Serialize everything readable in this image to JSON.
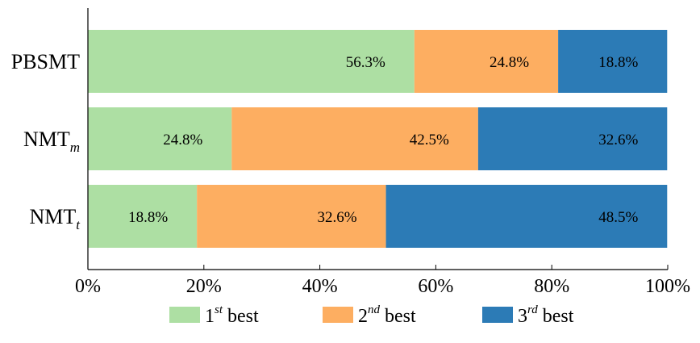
{
  "chart_data": {
    "type": "bar",
    "orientation": "horizontal",
    "stacked": true,
    "categories": [
      {
        "base": "PBSMT",
        "sub": ""
      },
      {
        "base": "NMT",
        "sub": "m"
      },
      {
        "base": "NMT",
        "sub": "t"
      }
    ],
    "series": [
      {
        "name": "1st best",
        "name_base": "1",
        "name_sup": "st",
        "name_rest": " best",
        "color": "#addfa3",
        "values": [
          56.3,
          24.8,
          18.8
        ],
        "labels": [
          "56.3%",
          "24.8%",
          "18.8%"
        ]
      },
      {
        "name": "2nd best",
        "name_base": "2",
        "name_sup": "nd",
        "name_rest": " best",
        "color": "#fdae61",
        "values": [
          24.8,
          42.5,
          32.6
        ],
        "labels": [
          "24.8%",
          "42.5%",
          "32.6%"
        ]
      },
      {
        "name": "3rd best",
        "name_base": "3",
        "name_sup": "rd",
        "name_rest": " best",
        "color": "#2c7bb6",
        "values": [
          18.8,
          32.6,
          48.5
        ],
        "labels": [
          "18.8%",
          "32.6%",
          "48.5%"
        ]
      }
    ],
    "xticks": [
      0,
      20,
      40,
      60,
      80,
      100
    ],
    "xtick_labels": [
      "0%",
      "20%",
      "40%",
      "60%",
      "80%",
      "100%"
    ],
    "xlim": [
      0,
      100
    ],
    "legend_position": "bottom",
    "grid": false
  }
}
